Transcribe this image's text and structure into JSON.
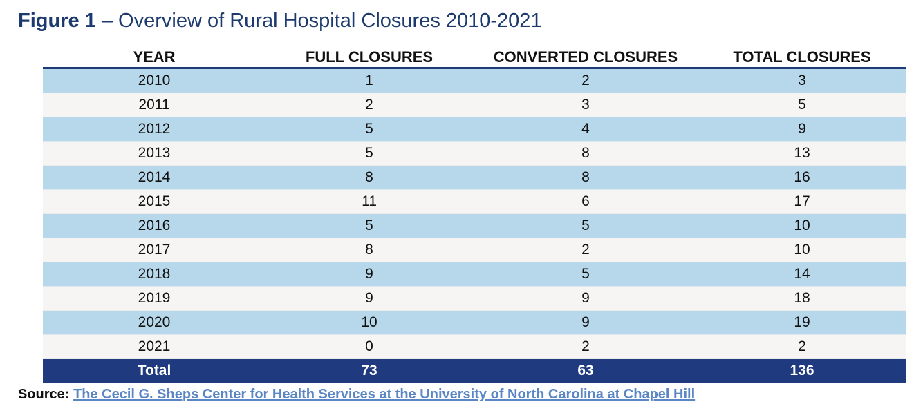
{
  "title": {
    "bold_part": "Figure 1",
    "rest": " – Overview of Rural Hospital Closures 2010-2021"
  },
  "table": {
    "headers": [
      "YEAR",
      "FULL CLOSURES",
      "CONVERTED CLOSURES",
      "TOTAL CLOSURES"
    ],
    "rows": [
      [
        "2010",
        "1",
        "2",
        "3"
      ],
      [
        "2011",
        "2",
        "3",
        "5"
      ],
      [
        "2012",
        "5",
        "4",
        "9"
      ],
      [
        "2013",
        "5",
        "8",
        "13"
      ],
      [
        "2014",
        "8",
        "8",
        "16"
      ],
      [
        "2015",
        "11",
        "6",
        "17"
      ],
      [
        "2016",
        "5",
        "5",
        "10"
      ],
      [
        "2017",
        "8",
        "2",
        "10"
      ],
      [
        "2018",
        "9",
        "5",
        "14"
      ],
      [
        "2019",
        "9",
        "9",
        "18"
      ],
      [
        "2020",
        "10",
        "9",
        "19"
      ],
      [
        "2021",
        "0",
        "2",
        "2"
      ]
    ],
    "total": [
      "Total",
      "73",
      "63",
      "136"
    ]
  },
  "source": {
    "label": "Source:",
    "link_text": "The Cecil G. Sheps Center for Health Services at the University of North Carolina at Chapel Hill"
  },
  "colors": {
    "title": "#1c3a6e",
    "row_band": "#b7d8ea",
    "row_alt": "#f6f5f3",
    "total_row": "#1f3a7e",
    "link": "#5a86c6"
  },
  "chart_data": {
    "type": "table",
    "title": "Figure 1 – Overview of Rural Hospital Closures 2010-2021",
    "columns": [
      "YEAR",
      "FULL CLOSURES",
      "CONVERTED CLOSURES",
      "TOTAL CLOSURES"
    ],
    "rows": [
      [
        2010,
        1,
        2,
        3
      ],
      [
        2011,
        2,
        3,
        5
      ],
      [
        2012,
        5,
        4,
        9
      ],
      [
        2013,
        5,
        8,
        13
      ],
      [
        2014,
        8,
        8,
        16
      ],
      [
        2015,
        11,
        6,
        17
      ],
      [
        2016,
        5,
        5,
        10
      ],
      [
        2017,
        8,
        2,
        10
      ],
      [
        2018,
        9,
        5,
        14
      ],
      [
        2019,
        9,
        9,
        18
      ],
      [
        2020,
        10,
        9,
        19
      ],
      [
        2021,
        0,
        2,
        2
      ]
    ],
    "total": [
      "Total",
      73,
      63,
      136
    ]
  }
}
